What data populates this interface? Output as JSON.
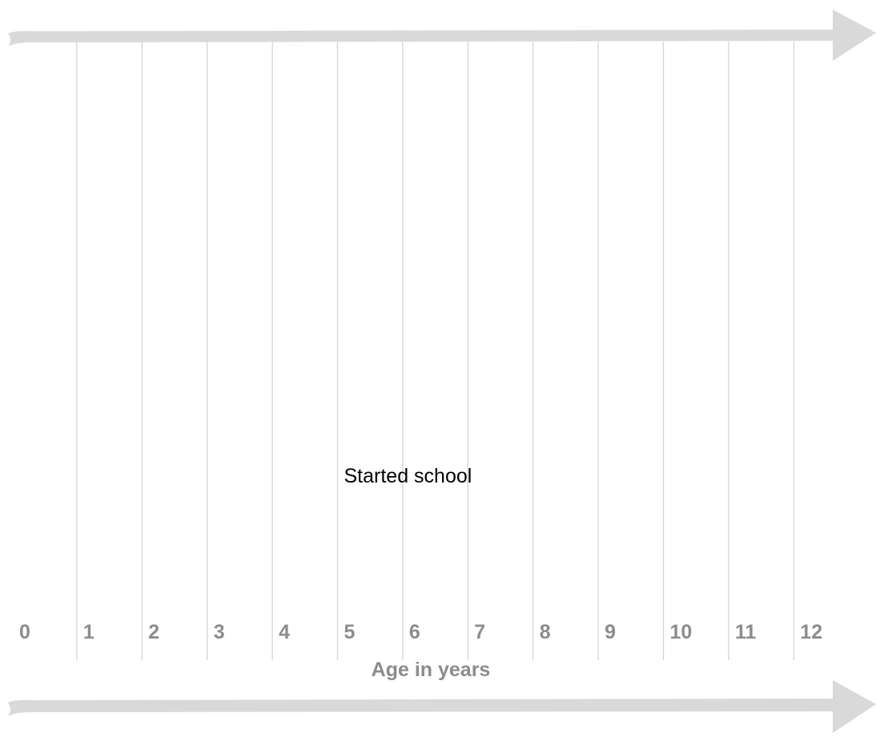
{
  "axis_title": "Age in years",
  "ticks": [
    "0",
    "1",
    "2",
    "3",
    "4",
    "5",
    "6",
    "7",
    "8",
    "9",
    "10",
    "11",
    "12"
  ],
  "events": [
    {
      "age": 5,
      "label": "Started school"
    }
  ],
  "colors": {
    "arrow": "#d9d9d9",
    "gridline": "#d4d4d4",
    "tick_label": "#8c8c8c",
    "event_label": "#000000"
  }
}
